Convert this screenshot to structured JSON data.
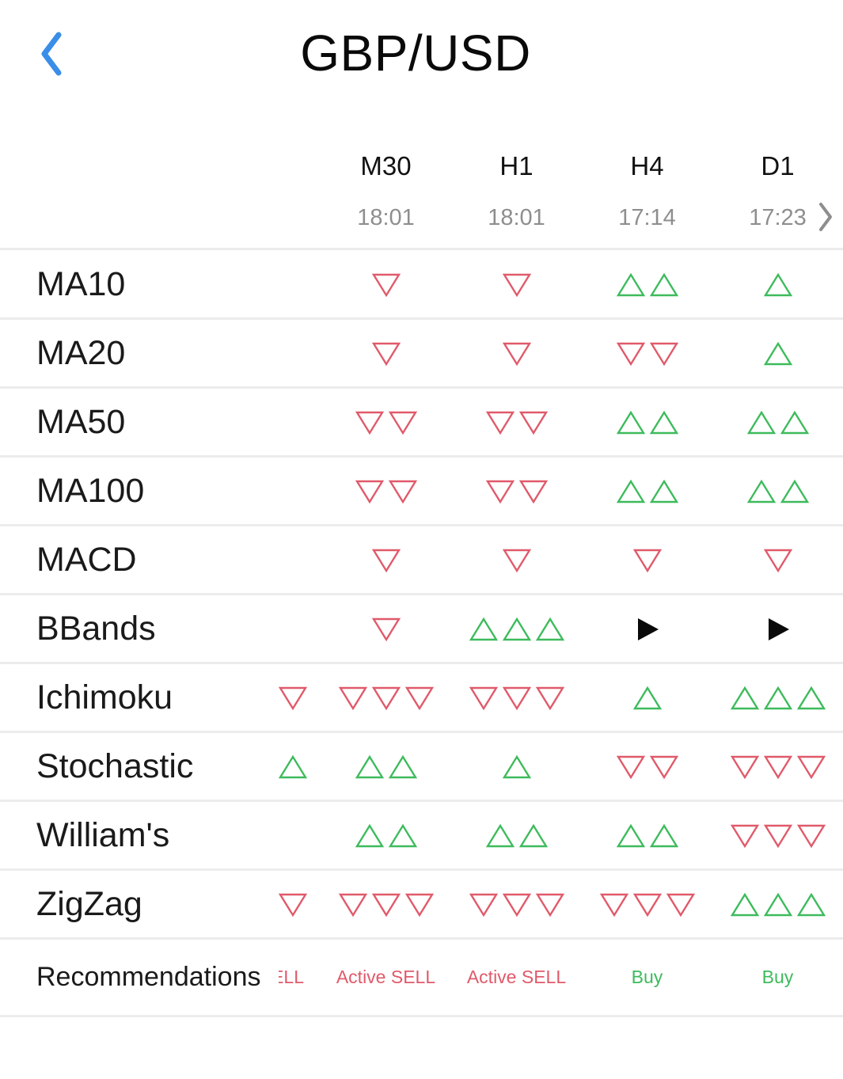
{
  "app": {
    "title": "GBP/USD",
    "accent_color": "#3a8ee8",
    "back_icon": "chevron-left-icon",
    "next_icon": "chevron-right-icon"
  },
  "colors": {
    "down": "#e05a6a",
    "up": "#3dbb5c",
    "neutral": "#0a0a0a",
    "sell_text": "#e05a6a",
    "buy_text": "#3dbb5c"
  },
  "timeframes": [
    {
      "label": "M30",
      "time": "18:01"
    },
    {
      "label": "H1",
      "time": "18:01"
    },
    {
      "label": "H4",
      "time": "17:14"
    },
    {
      "label": "D1",
      "time": "17:23"
    }
  ],
  "indicators": [
    {
      "name": "MA10",
      "signals": [
        {
          "dir": "down",
          "count": 1
        },
        {
          "dir": "down",
          "count": 1
        },
        {
          "dir": "up",
          "count": 2
        },
        {
          "dir": "up",
          "count": 1
        }
      ]
    },
    {
      "name": "MA20",
      "signals": [
        {
          "dir": "down",
          "count": 1
        },
        {
          "dir": "down",
          "count": 1
        },
        {
          "dir": "down",
          "count": 2
        },
        {
          "dir": "up",
          "count": 1
        }
      ]
    },
    {
      "name": "MA50",
      "signals": [
        {
          "dir": "down",
          "count": 2
        },
        {
          "dir": "down",
          "count": 2
        },
        {
          "dir": "up",
          "count": 2
        },
        {
          "dir": "up",
          "count": 2
        }
      ]
    },
    {
      "name": "MA100",
      "signals": [
        {
          "dir": "down",
          "count": 2
        },
        {
          "dir": "down",
          "count": 2
        },
        {
          "dir": "up",
          "count": 2
        },
        {
          "dir": "up",
          "count": 2
        }
      ]
    },
    {
      "name": "MACD",
      "signals": [
        {
          "dir": "down",
          "count": 1
        },
        {
          "dir": "down",
          "count": 1
        },
        {
          "dir": "down",
          "count": 1
        },
        {
          "dir": "down",
          "count": 1
        }
      ]
    },
    {
      "name": "BBands",
      "signals": [
        {
          "dir": "down",
          "count": 1
        },
        {
          "dir": "up",
          "count": 3
        },
        {
          "dir": "neutral",
          "count": 1
        },
        {
          "dir": "neutral",
          "count": 1
        }
      ]
    },
    {
      "name": "Ichimoku",
      "partial": {
        "dir": "down"
      },
      "signals": [
        {
          "dir": "down",
          "count": 3
        },
        {
          "dir": "down",
          "count": 3
        },
        {
          "dir": "up",
          "count": 1
        },
        {
          "dir": "up",
          "count": 3
        }
      ]
    },
    {
      "name": "Stochastic",
      "partial": {
        "dir": "up"
      },
      "signals": [
        {
          "dir": "up",
          "count": 2
        },
        {
          "dir": "up",
          "count": 1
        },
        {
          "dir": "down",
          "count": 2
        },
        {
          "dir": "down",
          "count": 3
        }
      ]
    },
    {
      "name": "William's",
      "signals": [
        {
          "dir": "up",
          "count": 2
        },
        {
          "dir": "up",
          "count": 2
        },
        {
          "dir": "up",
          "count": 2
        },
        {
          "dir": "down",
          "count": 3
        }
      ]
    },
    {
      "name": "ZigZag",
      "partial": {
        "dir": "down"
      },
      "signals": [
        {
          "dir": "down",
          "count": 3
        },
        {
          "dir": "down",
          "count": 3
        },
        {
          "dir": "down",
          "count": 3
        },
        {
          "dir": "up",
          "count": 3
        }
      ]
    }
  ],
  "recommendations": {
    "label": "Recommendations",
    "partial": {
      "text": "Active SELL",
      "type": "sell"
    },
    "values": [
      {
        "text": "Active SELL",
        "type": "sell"
      },
      {
        "text": "Active SELL",
        "type": "sell"
      },
      {
        "text": "Buy",
        "type": "buy"
      },
      {
        "text": "Buy",
        "type": "buy"
      }
    ]
  }
}
